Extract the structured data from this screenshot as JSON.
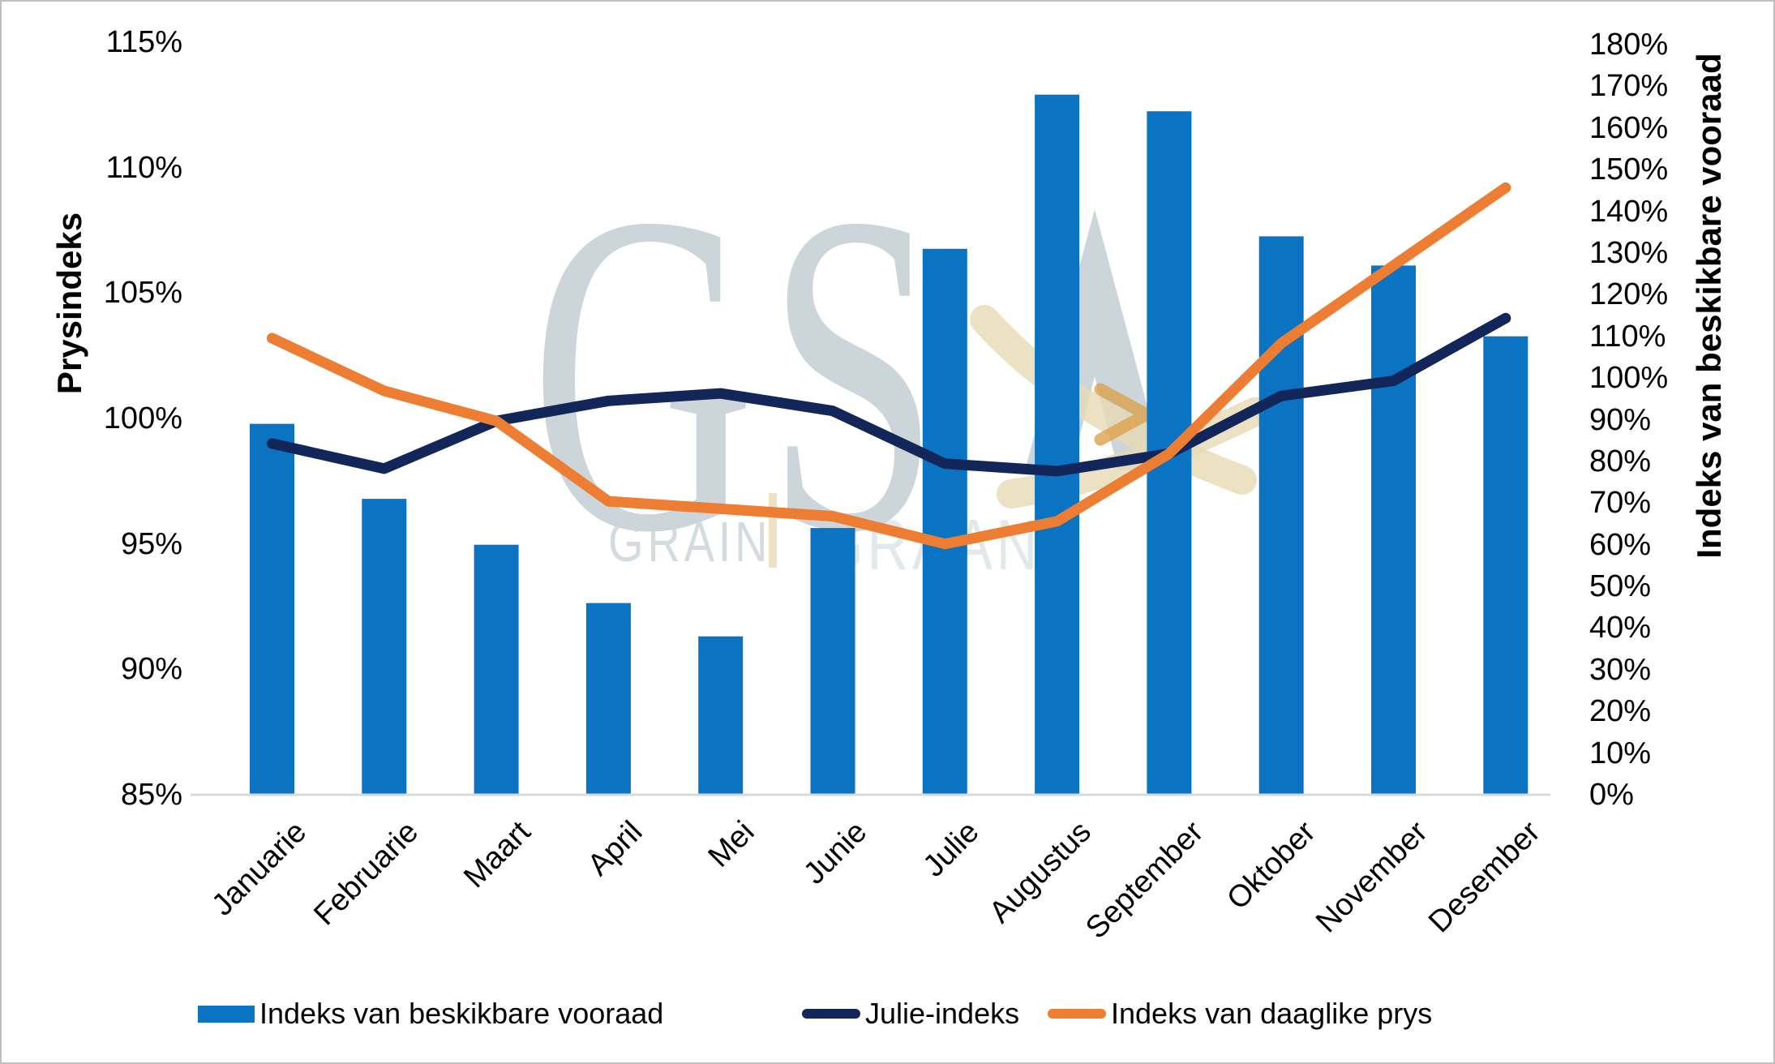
{
  "chart_data": {
    "type": "bar",
    "subtype": "bar-line-combo",
    "categories": [
      "Januarie",
      "Februarie",
      "Maart",
      "April",
      "Mei",
      "Junie",
      "Julie",
      "Augustus",
      "September",
      "Oktober",
      "November",
      "Desember"
    ],
    "series": [
      {
        "name": "Indeks van beskikbare vooraad",
        "type": "bar",
        "axis": "right",
        "color": "#0B74C2",
        "values": [
          89,
          71,
          60,
          46,
          38,
          64,
          131,
          168,
          164,
          134,
          127,
          110
        ]
      },
      {
        "name": "Julie-indeks",
        "type": "line",
        "axis": "left",
        "color": "#13265A",
        "values": [
          99.0,
          98.0,
          99.9,
          100.7,
          101.0,
          100.3,
          98.2,
          97.9,
          98.6,
          100.9,
          101.5,
          104.0
        ]
      },
      {
        "name": "Indeks van daaglike prys",
        "type": "line",
        "axis": "left",
        "color": "#EC7D33",
        "values": [
          103.2,
          101.1,
          99.9,
          96.7,
          96.4,
          96.1,
          95.0,
          95.9,
          98.6,
          103.0,
          106.1,
          109.2
        ]
      }
    ],
    "left_axis": {
      "title": "Prysindeks",
      "min": 85,
      "max": 115,
      "step": 5,
      "ticks": [
        "115%",
        "110%",
        "105%",
        "100%",
        "95%",
        "90%",
        "85%"
      ]
    },
    "right_axis": {
      "title": "Indeks van beskikbare vooraad",
      "min": 0,
      "max": 180,
      "step": 10,
      "ticks": [
        "180%",
        "170%",
        "160%",
        "150%",
        "140%",
        "130%",
        "120%",
        "110%",
        "100%",
        "90%",
        "80%",
        "70%",
        "60%",
        "50%",
        "40%",
        "30%",
        "20%",
        "10%",
        "0%"
      ]
    },
    "legend": {
      "position": "bottom",
      "entries": [
        "Indeks van beskikbare vooraad",
        "Julie-indeks",
        "Indeks van daaglike prys"
      ]
    },
    "grid": "off"
  },
  "watermark": {
    "monogram": "GS",
    "word_left": "GRAIN",
    "word_right": "GRAAN"
  },
  "colors": {
    "bar_blue": "#0B74C2",
    "line_navy": "#13265A",
    "line_orange": "#EC7D33",
    "axis_line": "#D9D9D9",
    "text": "#000000",
    "watermark_gray": "#CCD5D9",
    "watermark_gold": "#E7D9B4",
    "watermark_chevron": "#DCA14C",
    "border": "#BFBFBF",
    "background": "#FFFFFF"
  }
}
